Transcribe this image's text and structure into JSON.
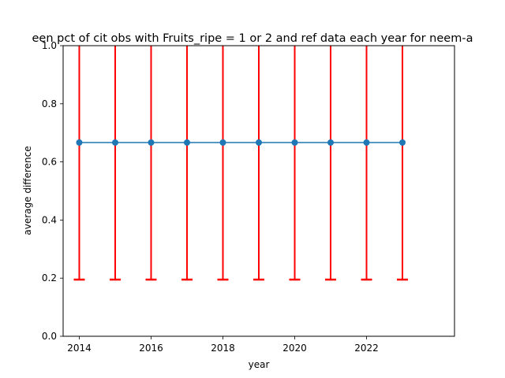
{
  "chart_data": {
    "type": "line",
    "title": "een pct of cit obs with Fruits_ripe = 1 or 2 and ref data each year for neem-a",
    "xlabel": "year",
    "ylabel": "average difference",
    "x": [
      2014,
      2015,
      2016,
      2017,
      2018,
      2019,
      2020,
      2021,
      2022,
      2023
    ],
    "series": [
      {
        "values": [
          0.6667,
          0.6667,
          0.6667,
          0.6667,
          0.6667,
          0.6667,
          0.6667,
          0.6667,
          0.6667,
          0.6667
        ],
        "error_lower": [
          0.195,
          0.195,
          0.195,
          0.195,
          0.195,
          0.195,
          0.195,
          0.195,
          0.195,
          0.195
        ],
        "error_upper": [
          1.14,
          1.14,
          1.14,
          1.14,
          1.14,
          1.14,
          1.14,
          1.14,
          1.14,
          1.14
        ],
        "line_color": "#1f77b4",
        "error_color": "#ff0000"
      }
    ],
    "xlim": [
      2013.55,
      2024.45
    ],
    "ylim": [
      0,
      1
    ],
    "xticks": [
      "2014",
      "2016",
      "2018",
      "2020",
      "2022"
    ],
    "yticks": [
      "0.0",
      "0.2",
      "0.4",
      "0.6",
      "0.8",
      "1.0"
    ],
    "grid": false
  }
}
